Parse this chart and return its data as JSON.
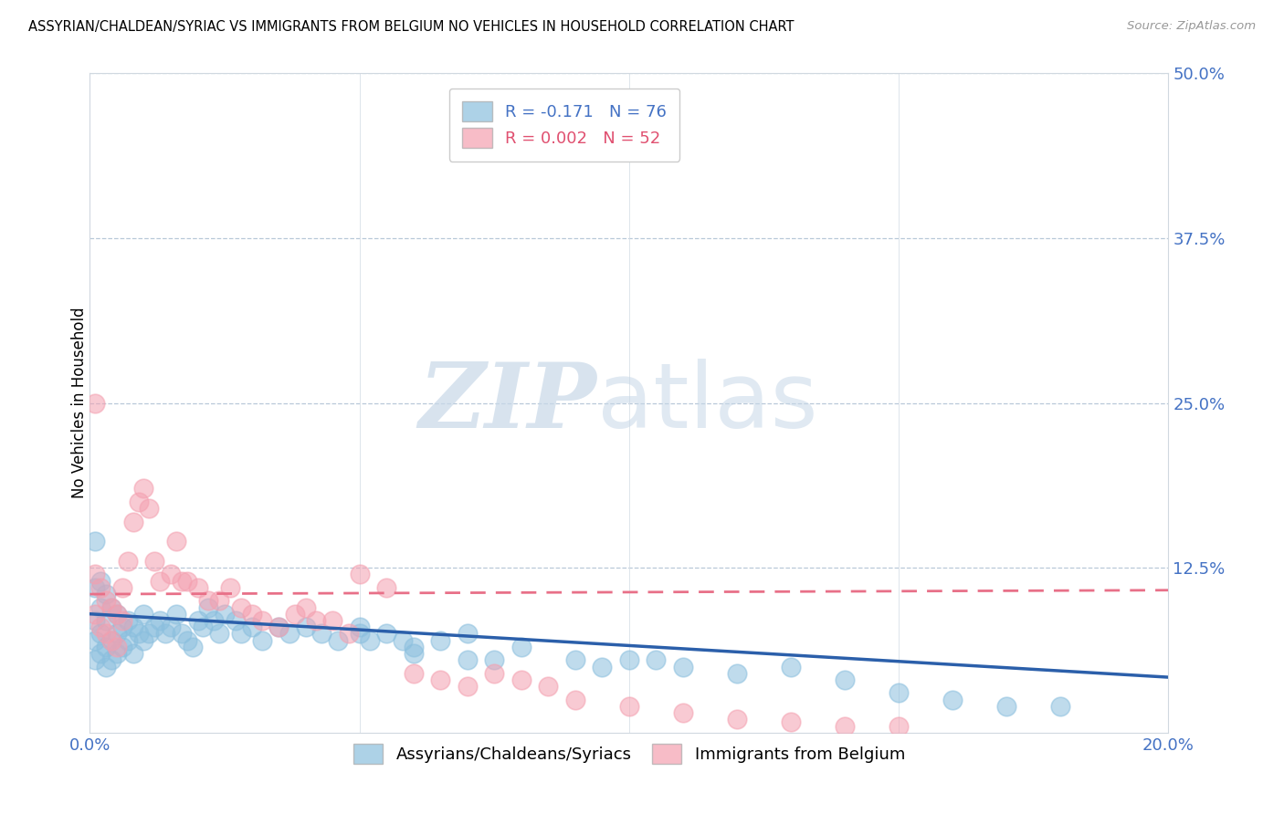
{
  "title": "ASSYRIAN/CHALDEAN/SYRIAC VS IMMIGRANTS FROM BELGIUM NO VEHICLES IN HOUSEHOLD CORRELATION CHART",
  "source": "Source: ZipAtlas.com",
  "ylabel": "No Vehicles in Household",
  "xlim": [
    0.0,
    0.2
  ],
  "ylim": [
    0.0,
    0.5
  ],
  "xticks": [
    0.0,
    0.05,
    0.1,
    0.15,
    0.2
  ],
  "yticks": [
    0.0,
    0.125,
    0.25,
    0.375,
    0.5
  ],
  "ytick_labels": [
    "",
    "12.5%",
    "25.0%",
    "37.5%",
    "50.0%"
  ],
  "xtick_labels": [
    "0.0%",
    "",
    "",
    "",
    "20.0%"
  ],
  "blue_R": -0.171,
  "blue_N": 76,
  "pink_R": 0.002,
  "pink_N": 52,
  "blue_color": "#8bbfde",
  "pink_color": "#f4a0b0",
  "blue_line_color": "#2b5faa",
  "pink_line_color": "#e87088",
  "blue_label": "Assyrians/Chaldeans/Syriacs",
  "pink_label": "Immigrants from Belgium",
  "watermark_zip": "ZIP",
  "watermark_atlas": "atlas",
  "blue_scatter_x": [
    0.001,
    0.001,
    0.001,
    0.001,
    0.001,
    0.002,
    0.002,
    0.002,
    0.002,
    0.003,
    0.003,
    0.003,
    0.003,
    0.004,
    0.004,
    0.004,
    0.005,
    0.005,
    0.005,
    0.006,
    0.006,
    0.007,
    0.007,
    0.008,
    0.008,
    0.009,
    0.01,
    0.01,
    0.011,
    0.012,
    0.013,
    0.014,
    0.015,
    0.016,
    0.017,
    0.018,
    0.019,
    0.02,
    0.021,
    0.022,
    0.023,
    0.024,
    0.025,
    0.027,
    0.028,
    0.03,
    0.032,
    0.035,
    0.037,
    0.04,
    0.043,
    0.046,
    0.05,
    0.052,
    0.055,
    0.058,
    0.06,
    0.065,
    0.07,
    0.075,
    0.08,
    0.09,
    0.095,
    0.1,
    0.105,
    0.11,
    0.12,
    0.13,
    0.14,
    0.15,
    0.16,
    0.17,
    0.18,
    0.05,
    0.06,
    0.07
  ],
  "blue_scatter_y": [
    0.145,
    0.11,
    0.085,
    0.07,
    0.055,
    0.115,
    0.095,
    0.075,
    0.06,
    0.105,
    0.085,
    0.065,
    0.05,
    0.095,
    0.07,
    0.055,
    0.09,
    0.075,
    0.06,
    0.08,
    0.065,
    0.085,
    0.07,
    0.08,
    0.06,
    0.075,
    0.09,
    0.07,
    0.075,
    0.08,
    0.085,
    0.075,
    0.08,
    0.09,
    0.075,
    0.07,
    0.065,
    0.085,
    0.08,
    0.095,
    0.085,
    0.075,
    0.09,
    0.085,
    0.075,
    0.08,
    0.07,
    0.08,
    0.075,
    0.08,
    0.075,
    0.07,
    0.08,
    0.07,
    0.075,
    0.07,
    0.065,
    0.07,
    0.075,
    0.055,
    0.065,
    0.055,
    0.05,
    0.055,
    0.055,
    0.05,
    0.045,
    0.05,
    0.04,
    0.03,
    0.025,
    0.02,
    0.02,
    0.075,
    0.06,
    0.055
  ],
  "pink_scatter_x": [
    0.001,
    0.001,
    0.001,
    0.002,
    0.002,
    0.003,
    0.003,
    0.004,
    0.004,
    0.005,
    0.005,
    0.006,
    0.006,
    0.007,
    0.008,
    0.009,
    0.01,
    0.011,
    0.012,
    0.013,
    0.015,
    0.016,
    0.017,
    0.018,
    0.02,
    0.022,
    0.024,
    0.026,
    0.028,
    0.03,
    0.032,
    0.035,
    0.038,
    0.04,
    0.042,
    0.045,
    0.048,
    0.05,
    0.055,
    0.06,
    0.065,
    0.07,
    0.075,
    0.08,
    0.085,
    0.09,
    0.1,
    0.11,
    0.12,
    0.13,
    0.14,
    0.15
  ],
  "pink_scatter_y": [
    0.25,
    0.12,
    0.09,
    0.11,
    0.08,
    0.1,
    0.075,
    0.095,
    0.07,
    0.09,
    0.065,
    0.085,
    0.11,
    0.13,
    0.16,
    0.175,
    0.185,
    0.17,
    0.13,
    0.115,
    0.12,
    0.145,
    0.115,
    0.115,
    0.11,
    0.1,
    0.1,
    0.11,
    0.095,
    0.09,
    0.085,
    0.08,
    0.09,
    0.095,
    0.085,
    0.085,
    0.075,
    0.12,
    0.11,
    0.045,
    0.04,
    0.035,
    0.045,
    0.04,
    0.035,
    0.025,
    0.02,
    0.015,
    0.01,
    0.008,
    0.005,
    0.005
  ]
}
